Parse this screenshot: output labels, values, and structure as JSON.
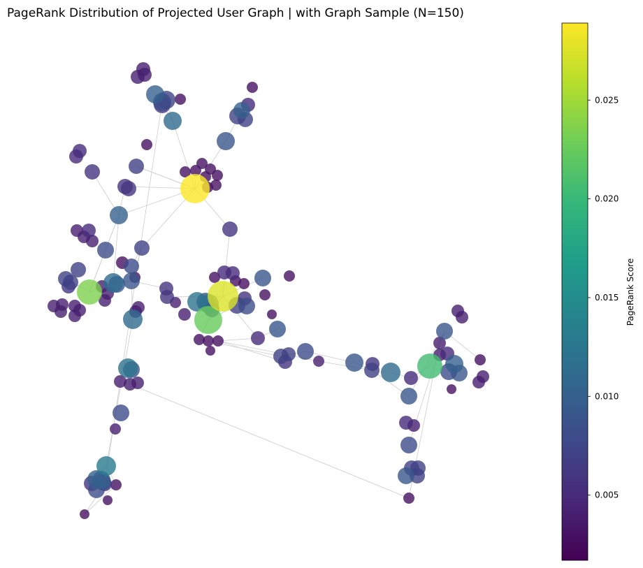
{
  "chart_data": {
    "type": "scatter",
    "title": "PageRank Distribution of Projected User Graph | with Graph Sample (N=150)",
    "colorbar": {
      "label": "PageRank Score",
      "min": 0.0017,
      "max": 0.0289,
      "ticks": [
        0.005,
        0.01,
        0.015,
        0.02,
        0.025
      ],
      "tick_labels": [
        "0.005",
        "0.010",
        "0.015",
        "0.020",
        "0.025"
      ],
      "colormap": "viridis",
      "stops": [
        "#440154",
        "#482878",
        "#3e4989",
        "#31688e",
        "#26828e",
        "#1f9e89",
        "#35b779",
        "#6ece58",
        "#b5de2b",
        "#fde725"
      ]
    },
    "grid": false,
    "node_alpha": 0.8,
    "edge_color": "#cccccc"
  }
}
